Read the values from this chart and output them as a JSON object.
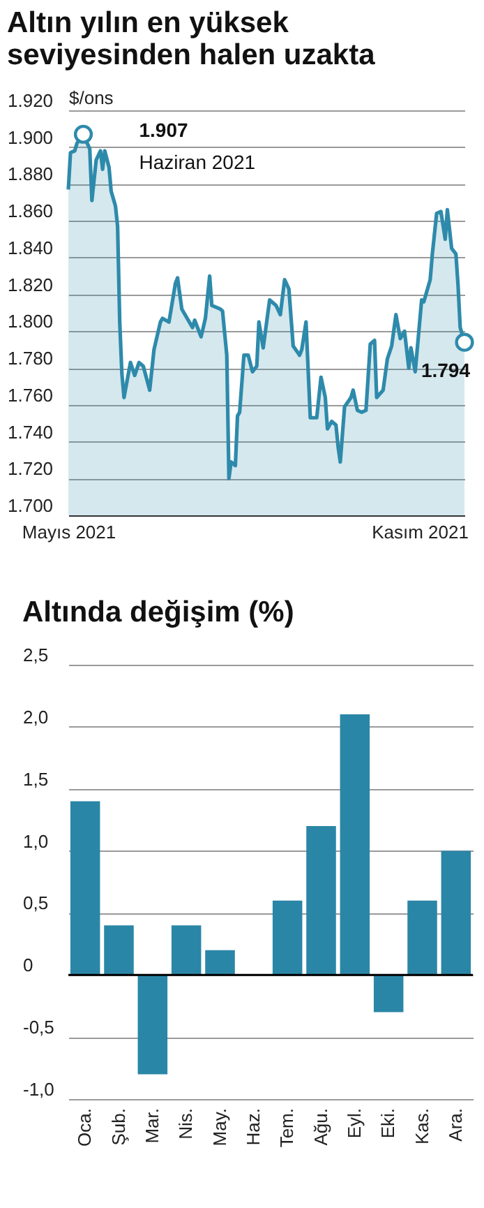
{
  "chart_data": [
    {
      "type": "area",
      "title": "Altın yılın en yüksek seviyesinden halen uzakta",
      "ylabel": "$/ons",
      "x": [
        "2021-05-26",
        "2021-05-27",
        "2021-05-29",
        "2021-05-30",
        "2021-06-01",
        "2021-06-02",
        "2021-06-05",
        "2021-06-06",
        "2021-06-08",
        "2021-06-10",
        "2021-06-11",
        "2021-06-12",
        "2021-06-14",
        "2021-06-15",
        "2021-06-17",
        "2021-06-18",
        "2021-06-19",
        "2021-06-20",
        "2021-06-21",
        "2021-06-24",
        "2021-06-26",
        "2021-06-28",
        "2021-06-30",
        "2021-07-03",
        "2021-07-05",
        "2021-07-08",
        "2021-07-09",
        "2021-07-12",
        "2021-07-15",
        "2021-07-16",
        "2021-07-18",
        "2021-07-23",
        "2021-07-24",
        "2021-07-27",
        "2021-07-29",
        "2021-07-31",
        "2021-08-01",
        "2021-08-05",
        "2021-08-06",
        "2021-08-08",
        "2021-08-09",
        "2021-08-10",
        "2021-08-12",
        "2021-08-13",
        "2021-08-14",
        "2021-08-16",
        "2021-08-18",
        "2021-08-20",
        "2021-08-22",
        "2021-08-23",
        "2021-08-25",
        "2021-08-28",
        "2021-08-31",
        "2021-09-02",
        "2021-09-04",
        "2021-09-06",
        "2021-09-08",
        "2021-09-11",
        "2021-09-12",
        "2021-09-14",
        "2021-09-16",
        "2021-09-19",
        "2021-09-21",
        "2021-09-23",
        "2021-09-24",
        "2021-09-26",
        "2021-09-28",
        "2021-09-29",
        "2021-09-30",
        "2021-10-02",
        "2021-10-05",
        "2021-10-06",
        "2021-10-08",
        "2021-10-10",
        "2021-10-12",
        "2021-10-14",
        "2021-10-16",
        "2021-10-17",
        "2021-10-20",
        "2021-10-22",
        "2021-10-24",
        "2021-10-26",
        "2021-10-28",
        "2021-10-30",
        "2021-11-01",
        "2021-11-02",
        "2021-11-04",
        "2021-11-07",
        "2021-11-08",
        "2021-11-11",
        "2021-11-12",
        "2021-11-14",
        "2021-11-16",
        "2021-11-18",
        "2021-11-19",
        "2021-11-21",
        "2021-11-23",
        "2021-11-24",
        "2021-11-25",
        "2021-11-27"
      ],
      "series": [
        {
          "color": "#2e8aab",
          "values": [
            1877,
            1897,
            1898,
            1902,
            1906,
            1907,
            1899,
            1871,
            1893,
            1898,
            1888,
            1898,
            1889,
            1876,
            1868,
            1857,
            1805,
            1777,
            1764,
            1783,
            1776,
            1783,
            1781,
            1768,
            1790,
            1805,
            1807,
            1805,
            1826,
            1829,
            1812,
            1802,
            1806,
            1797,
            1807,
            1830,
            1814,
            1812,
            1811,
            1787,
            1720,
            1729,
            1727,
            1754,
            1756,
            1787,
            1787,
            1778,
            1781,
            1805,
            1791,
            1817,
            1814,
            1809,
            1828,
            1823,
            1792,
            1787,
            1790,
            1805,
            1753,
            1753,
            1775,
            1764,
            1747,
            1751,
            1749,
            1737,
            1729,
            1759,
            1764,
            1768,
            1757,
            1756,
            1757,
            1793,
            1795,
            1764,
            1768,
            1785,
            1792,
            1809,
            1796,
            1800,
            1780,
            1791,
            1778,
            1817,
            1816,
            1828,
            1842,
            1864,
            1865,
            1850,
            1866,
            1845,
            1842,
            1825,
            1802,
            1794
          ]
        }
      ],
      "xlim": [
        "2021-05-26",
        "2021-11-27"
      ],
      "xticks": [
        {
          "value": "2021-05-26",
          "label": "Mayıs 2021"
        },
        {
          "value": "2021-11-06",
          "label": "Kasım 2021"
        }
      ],
      "ylim": [
        1700,
        1920
      ],
      "yticks": [
        {
          "value": 1700,
          "label": "1.700"
        },
        {
          "value": 1720,
          "label": "1.720"
        },
        {
          "value": 1740,
          "label": "1.740"
        },
        {
          "value": 1760,
          "label": "1.760"
        },
        {
          "value": 1780,
          "label": "1.780"
        },
        {
          "value": 1800,
          "label": "1.800"
        },
        {
          "value": 1820,
          "label": "1.820"
        },
        {
          "value": 1840,
          "label": "1.840"
        },
        {
          "value": 1860,
          "label": "1.860"
        },
        {
          "value": 1880,
          "label": "1.880"
        },
        {
          "value": 1900,
          "label": "1.900"
        },
        {
          "value": 1920,
          "label": "1.920"
        }
      ],
      "grid": "y",
      "annotations": [
        {
          "text": "1.907",
          "x": "2021-06-02",
          "y": 1907
        },
        {
          "text": "Haziran 2021",
          "x": "2021-06-02",
          "y": 1907
        },
        {
          "text": "1.794",
          "x": "2021-11-27",
          "y": 1794
        }
      ]
    },
    {
      "type": "bar",
      "title": "Altında değişim (%)",
      "categories": [
        "Oca.",
        "Şub.",
        "Mar.",
        "Nis.",
        "May.",
        "Haz.",
        "Tem.",
        "Ağu.",
        "Eyl.",
        "Eki.",
        "Kas.",
        "Ara."
      ],
      "series": [
        {
          "color": "#2a86a6",
          "values": [
            1.4,
            0.4,
            -0.8,
            0.4,
            0.2,
            0,
            0.6,
            1.2,
            2.1,
            -0.3,
            0.6,
            1.0
          ]
        }
      ],
      "ylim": [
        -1,
        2.5
      ],
      "yticks": [
        {
          "value": -1,
          "label": "-1,0"
        },
        {
          "value": -0.5,
          "label": "-0,5"
        },
        0,
        {
          "value": 0.5,
          "label": "0,5"
        },
        {
          "value": 1,
          "label": "1,0"
        },
        {
          "value": 1.5,
          "label": "1,5"
        },
        {
          "value": 2,
          "label": "2,0"
        },
        {
          "value": 2.5,
          "label": "2,5"
        }
      ],
      "grid": "y",
      "ref_lines": [
        {
          "axis": "y",
          "value": 0,
          "color": "#000000"
        }
      ]
    }
  ]
}
